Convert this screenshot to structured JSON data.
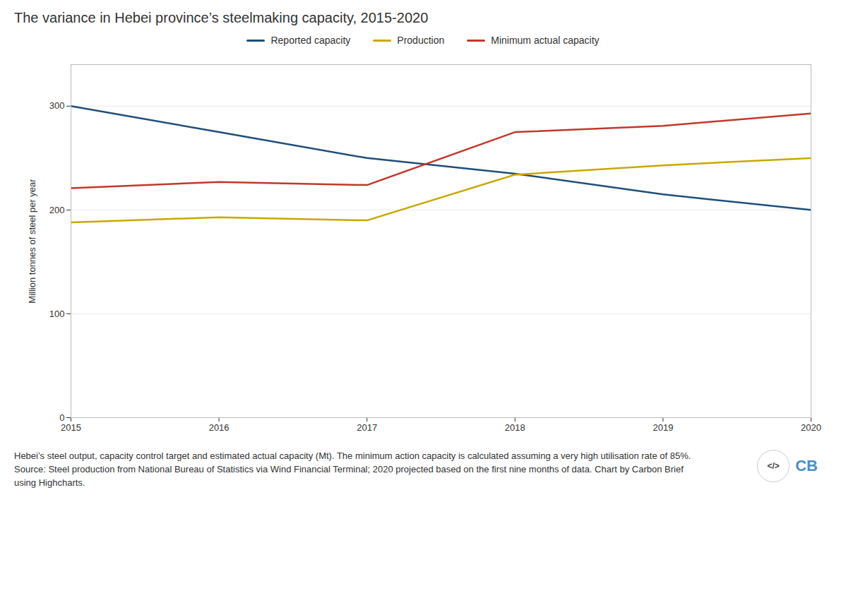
{
  "chart_data": {
    "type": "line",
    "title": "The variance in Hebei province’s steelmaking capacity, 2015-2020",
    "ylabel": "Million tonnes of steel per year",
    "caption": "Hebei’s steel output, capacity control target and estimated actual capacity (Mt). The minimum action capacity is calculated assuming a very high utilisation rate of 85%. Source: Steel production from National Bureau of Statistics via Wind Financial Terminal; 2020 projected based on the first nine months of data. Chart by Carbon Brief using Highcharts.",
    "annotations": [
      "</>",
      "CB"
    ],
    "x": [
      2015,
      2016,
      2017,
      2018,
      2019,
      2020
    ],
    "xlim": [
      2015,
      2020
    ],
    "xticks": [
      2015,
      2016,
      2017,
      2018,
      2019,
      2020
    ],
    "ylim": [
      0,
      340
    ],
    "yticks": [
      0,
      100,
      200,
      300
    ],
    "grid": true,
    "legend": "top",
    "series": [
      {
        "name": "Reported capacity",
        "color": "#1f4e79",
        "values": [
          300,
          275,
          250,
          235,
          215,
          200
        ]
      },
      {
        "name": "Production",
        "color": "#c8a800",
        "values": [
          188,
          193,
          190,
          234,
          243,
          250
        ]
      },
      {
        "name": "Minimum actual capacity",
        "color": "#c0392b",
        "values": [
          221,
          227,
          224,
          275,
          281,
          293
        ]
      }
    ]
  }
}
